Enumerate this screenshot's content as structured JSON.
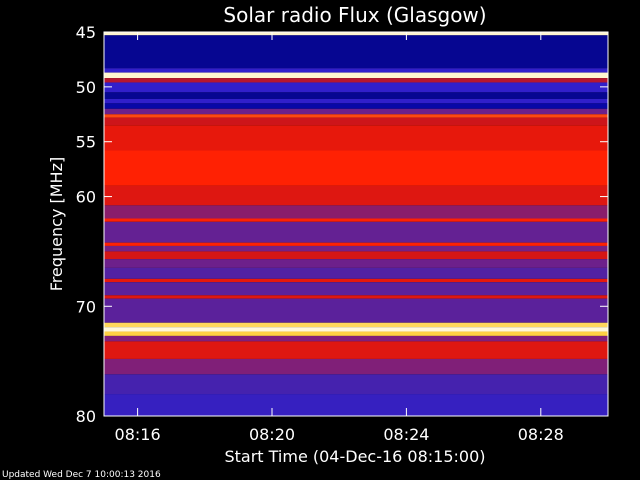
{
  "chart_data": {
    "type": "heatmap",
    "title": "Solar radio Flux (Glasgow)",
    "xlabel": "Start Time (04-Dec-16 08:15:00)",
    "ylabel": "Frequency [MHz]",
    "xlim": [
      "08:15:00",
      "08:30:00"
    ],
    "ylim": [
      45,
      80
    ],
    "y_ticks": [
      45,
      50,
      55,
      60,
      70,
      80
    ],
    "x_ticks": [
      "08:16",
      "08:20",
      "08:24",
      "08:28"
    ],
    "colorscale": [
      "#000066",
      "#1414ff",
      "#3a22b8",
      "#7a2080",
      "#c01420",
      "#ff1a00",
      "#ffd040",
      "#fffbe6"
    ],
    "frequency_bands": [
      {
        "from": 45.0,
        "to": 45.3,
        "level": 0.98
      },
      {
        "from": 45.3,
        "to": 48.3,
        "level": 0.04
      },
      {
        "from": 48.3,
        "to": 48.7,
        "level": 0.25
      },
      {
        "from": 48.7,
        "to": 49.2,
        "level": 0.98
      },
      {
        "from": 49.2,
        "to": 49.6,
        "level": 0.55
      },
      {
        "from": 49.6,
        "to": 50.5,
        "level": 0.25
      },
      {
        "from": 50.5,
        "to": 51.1,
        "level": 0.04
      },
      {
        "from": 51.1,
        "to": 51.5,
        "level": 0.25
      },
      {
        "from": 51.5,
        "to": 52.0,
        "level": 0.06
      },
      {
        "from": 52.0,
        "to": 52.5,
        "level": 0.4
      },
      {
        "from": 52.5,
        "to": 52.8,
        "level": 0.75
      },
      {
        "from": 52.8,
        "to": 53.5,
        "level": 0.6
      },
      {
        "from": 53.5,
        "to": 55.8,
        "level": 0.66
      },
      {
        "from": 55.8,
        "to": 59.0,
        "level": 0.72
      },
      {
        "from": 59.0,
        "to": 60.8,
        "level": 0.64
      },
      {
        "from": 60.8,
        "to": 62.0,
        "level": 0.46
      },
      {
        "from": 62.0,
        "to": 62.3,
        "level": 0.72
      },
      {
        "from": 62.3,
        "to": 64.2,
        "level": 0.38
      },
      {
        "from": 64.2,
        "to": 64.5,
        "level": 0.72
      },
      {
        "from": 64.5,
        "to": 65.0,
        "level": 0.42
      },
      {
        "from": 65.0,
        "to": 65.7,
        "level": 0.62
      },
      {
        "from": 65.7,
        "to": 66.5,
        "level": 0.4
      },
      {
        "from": 66.5,
        "to": 67.5,
        "level": 0.34
      },
      {
        "from": 67.5,
        "to": 67.8,
        "level": 0.66
      },
      {
        "from": 67.8,
        "to": 69.0,
        "level": 0.36
      },
      {
        "from": 69.0,
        "to": 69.3,
        "level": 0.64
      },
      {
        "from": 69.3,
        "to": 71.5,
        "level": 0.36
      },
      {
        "from": 71.5,
        "to": 71.9,
        "level": 0.88
      },
      {
        "from": 71.9,
        "to": 72.3,
        "level": 0.99
      },
      {
        "from": 72.3,
        "to": 72.7,
        "level": 0.86
      },
      {
        "from": 72.7,
        "to": 73.2,
        "level": 0.44
      },
      {
        "from": 73.2,
        "to": 74.8,
        "level": 0.64
      },
      {
        "from": 74.8,
        "to": 76.2,
        "level": 0.44
      },
      {
        "from": 76.2,
        "to": 78.0,
        "level": 0.31
      },
      {
        "from": 78.0,
        "to": 80.0,
        "level": 0.27
      }
    ]
  },
  "footer": {
    "updated": "Updated Wed Dec  7 10:00:13 2016"
  }
}
